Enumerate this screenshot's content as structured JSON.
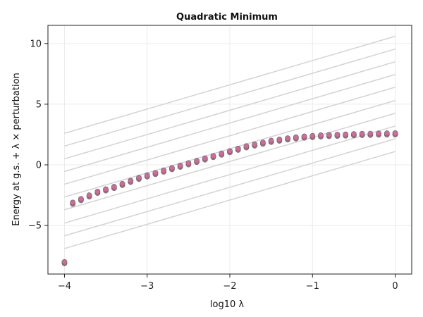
{
  "chart_data": {
    "type": "scatter",
    "title": "Quadratic Minimum",
    "xlabel": "log10 λ",
    "ylabel": "Energy at g.s. + λ × perturbation",
    "xlim": [
      -4.2,
      0.2
    ],
    "ylim": [
      -9,
      11.5
    ],
    "xticks": [
      -4,
      -3,
      -2,
      -1,
      0
    ],
    "xtick_labels": [
      "−4",
      "−3",
      "−2",
      "−1",
      "0"
    ],
    "yticks": [
      -5,
      0,
      5,
      10
    ],
    "ytick_labels": [
      "−5",
      "0",
      "5",
      "10"
    ],
    "grid": true,
    "legend": "none",
    "reference_lines": {
      "color": "#d3d3d3",
      "x_range": [
        -4,
        0
      ],
      "lines": [
        {
          "y_start": 2.6,
          "y_end": 10.6
        },
        {
          "y_start": 1.55,
          "y_end": 9.55
        },
        {
          "y_start": 0.5,
          "y_end": 8.5
        },
        {
          "y_start": -0.55,
          "y_end": 7.45
        },
        {
          "y_start": -1.6,
          "y_end": 6.4
        },
        {
          "y_start": -2.65,
          "y_end": 5.3
        },
        {
          "y_start": -3.7,
          "y_end": 4.25
        },
        {
          "y_start": -4.8,
          "y_end": 3.2
        },
        {
          "y_start": -5.85,
          "y_end": 2.15
        },
        {
          "y_start": -6.9,
          "y_end": 1.1
        }
      ]
    },
    "series": [
      {
        "color": "#d6669f",
        "x": [
          -4.0,
          -3.9,
          -3.8,
          -3.7,
          -3.6,
          -3.5,
          -3.4,
          -3.3,
          -3.2,
          -3.1,
          -3.0,
          -2.9,
          -2.8,
          -2.7,
          -2.6,
          -2.5,
          -2.4,
          -2.3,
          -2.2,
          -2.1,
          -2.0,
          -1.9,
          -1.8,
          -1.7,
          -1.6,
          -1.5,
          -1.4,
          -1.3,
          -1.2,
          -1.1,
          -1.0,
          -0.9,
          -0.8,
          -0.7,
          -0.6,
          -0.5,
          -0.4,
          -0.3,
          -0.2,
          -0.1,
          0.0
        ],
        "y": [
          -8.0,
          -3.1,
          -2.8,
          -2.5,
          -2.2,
          -2.0,
          -1.8,
          -1.55,
          -1.3,
          -1.05,
          -0.85,
          -0.65,
          -0.45,
          -0.25,
          -0.05,
          0.15,
          0.35,
          0.55,
          0.75,
          0.95,
          1.15,
          1.35,
          1.55,
          1.7,
          1.85,
          2.0,
          2.1,
          2.2,
          2.28,
          2.35,
          2.4,
          2.45,
          2.48,
          2.5,
          2.52,
          2.55,
          2.57,
          2.58,
          2.6,
          2.61,
          2.62
        ]
      }
    ]
  }
}
